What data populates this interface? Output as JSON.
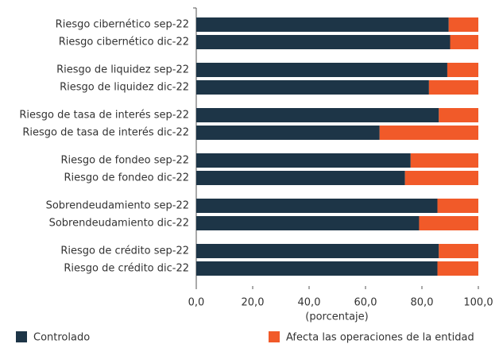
{
  "chart_data": {
    "type": "stacked-bar-horizontal",
    "categories": [
      "Riesgo cibernético sep-22",
      "Riesgo cibernético dic-22",
      "Riesgo de liquidez sep-22",
      "Riesgo de liquidez dic-22",
      "Riesgo de tasa de interés sep-22",
      "Riesgo de tasa de interés dic-22",
      "Riesgo de fondeo sep-22",
      "Riesgo de fondeo dic-22",
      "Sobrendeudamiento sep-22",
      "Sobrendeudamiento dic-22",
      "Riesgo de crédito sep-22",
      "Riesgo de crédito dic-22"
    ],
    "series": [
      {
        "name": "Controlado",
        "color": "#1d3547",
        "values": [
          89.5,
          90,
          89,
          82.5,
          86,
          65,
          76,
          74,
          85.5,
          79,
          86,
          85.5
        ]
      },
      {
        "name": "Afecta las operaciones de la entidad",
        "color": "#f15a29",
        "values": [
          10.5,
          10,
          11,
          17.5,
          14,
          35,
          24,
          26,
          14.5,
          21,
          14,
          14.5
        ]
      }
    ],
    "x_label": "(porcentaje)",
    "xlim": [
      0,
      100
    ],
    "xticks": [
      {
        "value": 0,
        "label": "0,0"
      },
      {
        "value": 20,
        "label": "20,0"
      },
      {
        "value": 40,
        "label": "40,0"
      },
      {
        "value": 60,
        "label": "60,0"
      },
      {
        "value": 80,
        "label": "80,0"
      },
      {
        "value": 100,
        "label": "100,0"
      }
    ],
    "legend": "bottom"
  }
}
